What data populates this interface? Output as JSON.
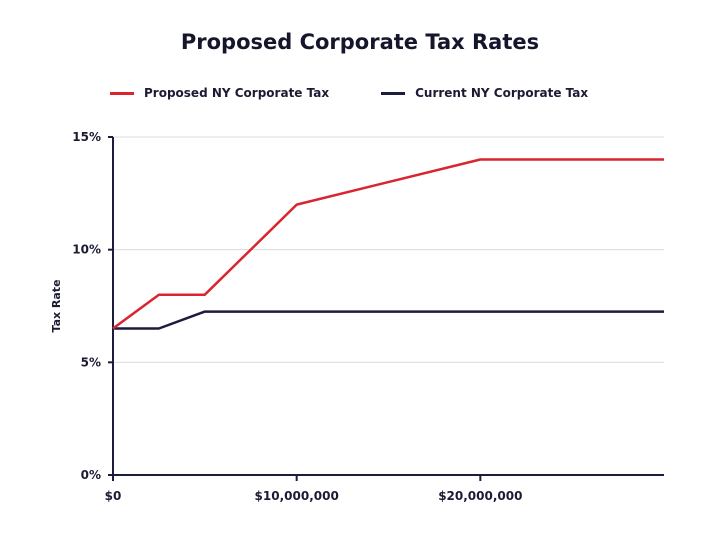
{
  "chart_data": {
    "type": "line",
    "title": "Proposed Corporate Tax Rates",
    "ylabel": "Tax Rate",
    "xlabel": "",
    "xlim": [
      0,
      30000000
    ],
    "ylim": [
      0,
      15
    ],
    "grid": true,
    "legend_placement": "top",
    "x_ticks": [
      {
        "value": 0,
        "label": "$0"
      },
      {
        "value": 10000000,
        "label": "$10,000,000"
      },
      {
        "value": 20000000,
        "label": "$20,000,000"
      }
    ],
    "y_ticks": [
      {
        "value": 0,
        "label": "0%"
      },
      {
        "value": 5,
        "label": "5%"
      },
      {
        "value": 10,
        "label": "10%"
      },
      {
        "value": 15,
        "label": "15%"
      }
    ],
    "series": [
      {
        "name": "Proposed NY Corporate Tax",
        "color": "#d9252f",
        "x": [
          0,
          2500000,
          5000000,
          10000000,
          20000000,
          30000000
        ],
        "y": [
          6.5,
          8,
          8,
          12,
          14,
          14
        ]
      },
      {
        "name": "Current NY Corporate Tax",
        "color": "#1c1c3c",
        "x": [
          0,
          2500000,
          5000000,
          30000000
        ],
        "y": [
          6.5,
          6.5,
          7.25,
          7.25
        ]
      }
    ]
  }
}
